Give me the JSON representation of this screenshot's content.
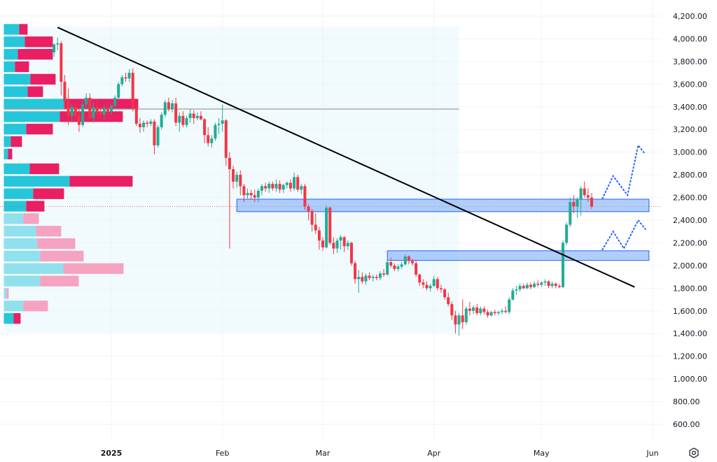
{
  "chart_data": {
    "type": "candlestick",
    "price_axis": {
      "ticks": [
        "4,200.00",
        "4,000.00",
        "3,800.00",
        "3,600.00",
        "3,400.00",
        "3,200.00",
        "3,000.00",
        "2,800.00",
        "2,600.00",
        "2,400.00",
        "2,200.00",
        "2,000.00",
        "1,800.00",
        "1,600.00",
        "1,400.00",
        "1,200.00",
        "1,000.00",
        "800.00",
        "600.00"
      ],
      "tick_values": [
        4200,
        4000,
        3800,
        3600,
        3400,
        3200,
        3000,
        2800,
        2600,
        2400,
        2200,
        2000,
        1800,
        1600,
        1400,
        1200,
        1000,
        800,
        600
      ],
      "range": [
        480,
        4290
      ]
    },
    "time_axis": {
      "labels": [
        {
          "text": "2025",
          "date": "2025-01-01",
          "bold": true
        },
        {
          "text": "Feb",
          "date": "2025-02-01",
          "bold": false
        },
        {
          "text": "Mar",
          "date": "2025-03-01",
          "bold": false
        },
        {
          "text": "Apr",
          "date": "2025-04-01",
          "bold": false
        },
        {
          "text": "May",
          "date": "2025-05-01",
          "bold": false
        },
        {
          "text": "Jun",
          "date": "2025-06-01",
          "bold": false
        }
      ],
      "range": [
        "2024-12-02",
        "2025-06-02"
      ]
    },
    "colors": {
      "up": "#22ab94",
      "down": "#f23645",
      "volume_up": "#26c6da",
      "volume_down": "#e91e63",
      "zone_fill": "#90b8f8",
      "zone_border": "#2962ff",
      "trendline": "#000000",
      "projection": "#2962ff",
      "horizontal_line": "#9e9e9e",
      "shade": "#e3f6fb"
    },
    "candles": [
      [
        "2024-12-16",
        3880,
        3960,
        3840,
        3950
      ],
      [
        "2024-12-17",
        3950,
        4010,
        3900,
        3960
      ],
      [
        "2024-12-18",
        3960,
        3980,
        3500,
        3620
      ],
      [
        "2024-12-19",
        3620,
        3680,
        3380,
        3450
      ],
      [
        "2024-12-20",
        3450,
        3560,
        3240,
        3320
      ],
      [
        "2024-12-21",
        3320,
        3420,
        3260,
        3400
      ],
      [
        "2024-12-22",
        3400,
        3440,
        3290,
        3320
      ],
      [
        "2024-12-23",
        3320,
        3380,
        3180,
        3240
      ],
      [
        "2024-12-24",
        3240,
        3460,
        3220,
        3420
      ],
      [
        "2024-12-25",
        3420,
        3520,
        3380,
        3480
      ],
      [
        "2024-12-26",
        3480,
        3520,
        3280,
        3300
      ],
      [
        "2024-12-27",
        3300,
        3440,
        3260,
        3400
      ],
      [
        "2024-12-28",
        3400,
        3450,
        3330,
        3360
      ],
      [
        "2024-12-29",
        3360,
        3420,
        3300,
        3330
      ],
      [
        "2024-12-30",
        3330,
        3420,
        3290,
        3390
      ],
      [
        "2024-12-31",
        3390,
        3440,
        3320,
        3360
      ],
      [
        "2025-01-01",
        3360,
        3420,
        3330,
        3410
      ],
      [
        "2025-01-02",
        3410,
        3500,
        3390,
        3480
      ],
      [
        "2025-01-03",
        3480,
        3620,
        3460,
        3600
      ],
      [
        "2025-01-04",
        3600,
        3680,
        3580,
        3660
      ],
      [
        "2025-01-05",
        3660,
        3700,
        3620,
        3650
      ],
      [
        "2025-01-06",
        3650,
        3730,
        3620,
        3700
      ],
      [
        "2025-01-07",
        3700,
        3740,
        3360,
        3390
      ],
      [
        "2025-01-08",
        3390,
        3420,
        3230,
        3250
      ],
      [
        "2025-01-09",
        3250,
        3300,
        3170,
        3220
      ],
      [
        "2025-01-10",
        3220,
        3280,
        3180,
        3260
      ],
      [
        "2025-01-11",
        3260,
        3280,
        3220,
        3250
      ],
      [
        "2025-01-12",
        3250,
        3290,
        3230,
        3270
      ],
      [
        "2025-01-13",
        3270,
        3290,
        2980,
        3060
      ],
      [
        "2025-01-14",
        3060,
        3240,
        3040,
        3220
      ],
      [
        "2025-01-15",
        3220,
        3350,
        3200,
        3330
      ],
      [
        "2025-01-16",
        3330,
        3460,
        3310,
        3440
      ],
      [
        "2025-01-17",
        3440,
        3480,
        3360,
        3380
      ],
      [
        "2025-01-18",
        3380,
        3460,
        3350,
        3430
      ],
      [
        "2025-01-19",
        3430,
        3480,
        3230,
        3260
      ],
      [
        "2025-01-20",
        3260,
        3350,
        3180,
        3320
      ],
      [
        "2025-01-21",
        3320,
        3360,
        3220,
        3240
      ],
      [
        "2025-01-22",
        3240,
        3320,
        3220,
        3300
      ],
      [
        "2025-01-23",
        3300,
        3380,
        3260,
        3340
      ],
      [
        "2025-01-24",
        3340,
        3370,
        3250,
        3300
      ],
      [
        "2025-01-25",
        3300,
        3350,
        3280,
        3320
      ],
      [
        "2025-01-26",
        3320,
        3360,
        3280,
        3290
      ],
      [
        "2025-01-27",
        3290,
        3300,
        3080,
        3150
      ],
      [
        "2025-01-28",
        3150,
        3220,
        3050,
        3080
      ],
      [
        "2025-01-29",
        3080,
        3150,
        3040,
        3120
      ],
      [
        "2025-01-30",
        3120,
        3260,
        3100,
        3240
      ],
      [
        "2025-01-31",
        3240,
        3300,
        3160,
        3250
      ],
      [
        "2025-02-01",
        3250,
        3420,
        3180,
        3280
      ],
      [
        "2025-02-02",
        3280,
        3290,
        2880,
        2950
      ],
      [
        "2025-02-03",
        2950,
        3000,
        2150,
        2850
      ],
      [
        "2025-02-04",
        2850,
        2880,
        2680,
        2740
      ],
      [
        "2025-02-05",
        2740,
        2830,
        2690,
        2800
      ],
      [
        "2025-02-06",
        2800,
        2840,
        2620,
        2700
      ],
      [
        "2025-02-07",
        2700,
        2720,
        2560,
        2620
      ],
      [
        "2025-02-08",
        2620,
        2680,
        2590,
        2640
      ],
      [
        "2025-02-09",
        2640,
        2670,
        2580,
        2620
      ],
      [
        "2025-02-10",
        2620,
        2670,
        2560,
        2600
      ],
      [
        "2025-02-11",
        2600,
        2680,
        2560,
        2660
      ],
      [
        "2025-02-12",
        2660,
        2720,
        2620,
        2700
      ],
      [
        "2025-02-13",
        2700,
        2730,
        2650,
        2680
      ],
      [
        "2025-02-14",
        2680,
        2740,
        2640,
        2720
      ],
      [
        "2025-02-15",
        2720,
        2740,
        2660,
        2680
      ],
      [
        "2025-02-16",
        2680,
        2760,
        2650,
        2720
      ],
      [
        "2025-02-17",
        2720,
        2750,
        2640,
        2670
      ],
      [
        "2025-02-18",
        2670,
        2720,
        2640,
        2710
      ],
      [
        "2025-02-19",
        2710,
        2740,
        2680,
        2730
      ],
      [
        "2025-02-20",
        2730,
        2760,
        2650,
        2680
      ],
      [
        "2025-02-21",
        2680,
        2820,
        2660,
        2780
      ],
      [
        "2025-02-22",
        2780,
        2800,
        2650,
        2670
      ],
      [
        "2025-02-23",
        2670,
        2720,
        2630,
        2700
      ],
      [
        "2025-02-24",
        2700,
        2720,
        2490,
        2520
      ],
      [
        "2025-02-25",
        2520,
        2540,
        2400,
        2480
      ],
      [
        "2025-02-26",
        2480,
        2500,
        2300,
        2360
      ],
      [
        "2025-02-27",
        2360,
        2460,
        2280,
        2310
      ],
      [
        "2025-02-28",
        2310,
        2340,
        2140,
        2220
      ],
      [
        "2025-03-01",
        2220,
        2250,
        2130,
        2160
      ],
      [
        "2025-03-02",
        2160,
        2530,
        2150,
        2510
      ],
      [
        "2025-03-03",
        2510,
        2520,
        2180,
        2200
      ],
      [
        "2025-03-04",
        2200,
        2250,
        2100,
        2150
      ],
      [
        "2025-03-05",
        2150,
        2240,
        2110,
        2220
      ],
      [
        "2025-03-06",
        2220,
        2270,
        2140,
        2250
      ],
      [
        "2025-03-07",
        2250,
        2260,
        2120,
        2170
      ],
      [
        "2025-03-08",
        2170,
        2220,
        2140,
        2200
      ],
      [
        "2025-03-09",
        2200,
        2210,
        2000,
        2020
      ],
      [
        "2025-03-10",
        2020,
        2040,
        1840,
        1880
      ],
      [
        "2025-03-11",
        1880,
        1960,
        1760,
        1900
      ],
      [
        "2025-03-12",
        1900,
        1940,
        1840,
        1860
      ],
      [
        "2025-03-13",
        1860,
        1930,
        1830,
        1910
      ],
      [
        "2025-03-14",
        1910,
        1940,
        1870,
        1890
      ],
      [
        "2025-03-15",
        1890,
        1920,
        1860,
        1900
      ],
      [
        "2025-03-16",
        1900,
        1920,
        1870,
        1890
      ],
      [
        "2025-03-17",
        1890,
        1950,
        1870,
        1930
      ],
      [
        "2025-03-18",
        1930,
        1970,
        1900,
        1920
      ],
      [
        "2025-03-19",
        1920,
        2060,
        1910,
        2030
      ],
      [
        "2025-03-20",
        2030,
        2070,
        1980,
        2000
      ],
      [
        "2025-03-21",
        2000,
        2020,
        1950,
        1970
      ],
      [
        "2025-03-22",
        1970,
        2010,
        1950,
        1990
      ],
      [
        "2025-03-23",
        1990,
        2030,
        1970,
        2010
      ],
      [
        "2025-03-24",
        2010,
        2100,
        2000,
        2080
      ],
      [
        "2025-03-25",
        2080,
        2090,
        2010,
        2040
      ],
      [
        "2025-03-26",
        2040,
        2060,
        2000,
        2020
      ],
      [
        "2025-03-27",
        2020,
        2040,
        1900,
        1920
      ],
      [
        "2025-03-28",
        1920,
        1930,
        1820,
        1850
      ],
      [
        "2025-03-29",
        1850,
        1880,
        1800,
        1830
      ],
      [
        "2025-03-30",
        1830,
        1860,
        1780,
        1800
      ],
      [
        "2025-03-31",
        1800,
        1840,
        1770,
        1820
      ],
      [
        "2025-04-01",
        1820,
        1910,
        1810,
        1880
      ],
      [
        "2025-04-02",
        1880,
        1900,
        1780,
        1800
      ],
      [
        "2025-04-03",
        1800,
        1830,
        1760,
        1790
      ],
      [
        "2025-04-04",
        1790,
        1800,
        1700,
        1720
      ],
      [
        "2025-04-05",
        1720,
        1760,
        1640,
        1660
      ],
      [
        "2025-04-06",
        1660,
        1680,
        1520,
        1560
      ],
      [
        "2025-04-07",
        1560,
        1600,
        1400,
        1480
      ],
      [
        "2025-04-08",
        1480,
        1580,
        1380,
        1560
      ],
      [
        "2025-04-09",
        1560,
        1700,
        1440,
        1500
      ],
      [
        "2025-04-10",
        1500,
        1640,
        1480,
        1620
      ],
      [
        "2025-04-11",
        1620,
        1680,
        1560,
        1600
      ],
      [
        "2025-04-12",
        1600,
        1650,
        1570,
        1630
      ],
      [
        "2025-04-13",
        1630,
        1660,
        1560,
        1580
      ],
      [
        "2025-04-14",
        1580,
        1640,
        1560,
        1620
      ],
      [
        "2025-04-15",
        1620,
        1640,
        1570,
        1590
      ],
      [
        "2025-04-16",
        1590,
        1610,
        1540,
        1560
      ],
      [
        "2025-04-17",
        1560,
        1600,
        1550,
        1590
      ],
      [
        "2025-04-18",
        1590,
        1610,
        1560,
        1580
      ],
      [
        "2025-04-19",
        1580,
        1600,
        1560,
        1590
      ],
      [
        "2025-04-20",
        1590,
        1620,
        1570,
        1600
      ],
      [
        "2025-04-21",
        1600,
        1640,
        1580,
        1590
      ],
      [
        "2025-04-22",
        1590,
        1720,
        1570,
        1700
      ],
      [
        "2025-04-23",
        1700,
        1800,
        1690,
        1780
      ],
      [
        "2025-04-24",
        1780,
        1820,
        1740,
        1790
      ],
      [
        "2025-04-25",
        1790,
        1840,
        1770,
        1820
      ],
      [
        "2025-04-26",
        1820,
        1840,
        1790,
        1800
      ],
      [
        "2025-04-27",
        1800,
        1850,
        1790,
        1830
      ],
      [
        "2025-04-28",
        1830,
        1850,
        1790,
        1810
      ],
      [
        "2025-04-29",
        1810,
        1860,
        1800,
        1840
      ],
      [
        "2025-04-30",
        1840,
        1870,
        1810,
        1830
      ],
      [
        "2025-05-01",
        1830,
        1860,
        1810,
        1850
      ],
      [
        "2025-05-02",
        1850,
        1880,
        1820,
        1860
      ],
      [
        "2025-05-03",
        1860,
        1870,
        1800,
        1820
      ],
      [
        "2025-05-04",
        1820,
        1860,
        1800,
        1840
      ],
      [
        "2025-05-05",
        1840,
        1850,
        1800,
        1820
      ],
      [
        "2025-05-06",
        1820,
        1840,
        1800,
        1810
      ],
      [
        "2025-05-07",
        1810,
        2220,
        1800,
        2200
      ],
      [
        "2025-05-08",
        2200,
        2380,
        2180,
        2360
      ],
      [
        "2025-05-09",
        2360,
        2600,
        2340,
        2560
      ],
      [
        "2025-05-10",
        2560,
        2620,
        2460,
        2520
      ],
      [
        "2025-05-11",
        2520,
        2600,
        2420,
        2580
      ],
      [
        "2025-05-12",
        2580,
        2700,
        2440,
        2680
      ],
      [
        "2025-05-13",
        2680,
        2740,
        2600,
        2620
      ],
      [
        "2025-05-14",
        2620,
        2680,
        2560,
        2600
      ],
      [
        "2025-05-15",
        2600,
        2640,
        2500,
        2520
      ]
    ],
    "volume_profile": [
      {
        "low": 4030,
        "high": 4130,
        "up": 22,
        "down": 12
      },
      {
        "low": 3920,
        "high": 4020,
        "up": 30,
        "down": 40
      },
      {
        "low": 3810,
        "high": 3910,
        "up": 20,
        "down": 50
      },
      {
        "low": 3700,
        "high": 3800,
        "up": 16,
        "down": 20
      },
      {
        "low": 3590,
        "high": 3690,
        "up": 38,
        "down": 36
      },
      {
        "low": 3480,
        "high": 3580,
        "up": 34,
        "down": 22
      },
      {
        "low": 3370,
        "high": 3470,
        "up": 86,
        "down": 106
      },
      {
        "low": 3260,
        "high": 3360,
        "up": 80,
        "down": 90
      },
      {
        "low": 3150,
        "high": 3250,
        "up": 32,
        "down": 38
      },
      {
        "low": 3040,
        "high": 3140,
        "up": 10,
        "down": 16
      },
      {
        "low": 2930,
        "high": 3030,
        "up": 6,
        "down": 6
      },
      {
        "low": 2800,
        "high": 2900,
        "up": 37,
        "down": 42
      },
      {
        "low": 2690,
        "high": 2790,
        "up": 94,
        "down": 90
      },
      {
        "low": 2580,
        "high": 2680,
        "up": 42,
        "down": 44
      },
      {
        "low": 2470,
        "high": 2570,
        "up": 32,
        "down": 26
      },
      {
        "low": 2360,
        "high": 2460,
        "up": 28,
        "down": 22
      },
      {
        "low": 2250,
        "high": 2350,
        "up": 46,
        "down": 36
      },
      {
        "low": 2140,
        "high": 2240,
        "up": 48,
        "down": 54
      },
      {
        "low": 2030,
        "high": 2130,
        "up": 52,
        "down": 62
      },
      {
        "low": 1920,
        "high": 2020,
        "up": 85,
        "down": 86
      },
      {
        "low": 1810,
        "high": 1910,
        "up": 52,
        "down": 55
      },
      {
        "low": 1700,
        "high": 1800,
        "up": 4,
        "down": 3
      },
      {
        "low": 1590,
        "high": 1690,
        "up": 28,
        "down": 35
      },
      {
        "low": 1480,
        "high": 1580,
        "up": 14,
        "down": 10
      }
    ],
    "volume_profile_range": {
      "start": "2024-12-02",
      "end": "2025-04-08",
      "low": 1410,
      "high": 4110
    },
    "horizontal_line": {
      "price": 3380,
      "start": "2024-12-02",
      "end": "2025-04-08"
    },
    "current_price_line": 2520,
    "trendline": {
      "from": {
        "date": "2024-12-17",
        "price": 4100
      },
      "to": {
        "date": "2025-05-27",
        "price": 1810
      }
    },
    "zones": [
      {
        "start": "2025-02-05",
        "end": "2025-05-31",
        "low": 2475,
        "high": 2585
      },
      {
        "start": "2025-03-19",
        "end": "2025-05-31",
        "low": 2045,
        "high": 2130
      }
    ],
    "projections": [
      [
        [
          "2025-05-18",
          2590
        ],
        [
          "2025-05-21",
          2790
        ],
        [
          "2025-05-25",
          2620
        ],
        [
          "2025-05-28",
          3060
        ],
        [
          "2025-05-30",
          2980
        ]
      ],
      [
        [
          "2025-05-18",
          2140
        ],
        [
          "2025-05-21",
          2300
        ],
        [
          "2025-05-24",
          2150
        ],
        [
          "2025-05-28",
          2400
        ],
        [
          "2025-05-30",
          2320
        ]
      ]
    ]
  },
  "ui": {
    "settings_icon": "gear-icon"
  }
}
